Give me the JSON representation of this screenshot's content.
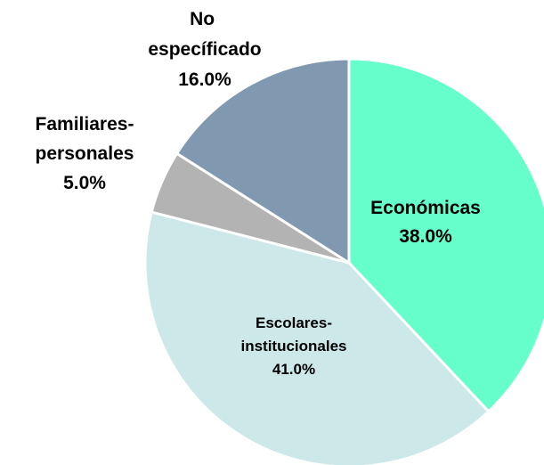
{
  "chart_data": {
    "type": "pie",
    "categories": [
      "Económicas",
      "Escolares-institucionales",
      "Familiares-personales",
      "No específicado"
    ],
    "values": [
      38,
      41,
      5,
      16
    ],
    "value_labels": [
      "38.0%",
      "41.0%",
      "5.0%",
      "16.0%"
    ],
    "colors": [
      "#66ffcc",
      "#cce8e8",
      "#b3b3b3",
      "#8098b0"
    ]
  }
}
